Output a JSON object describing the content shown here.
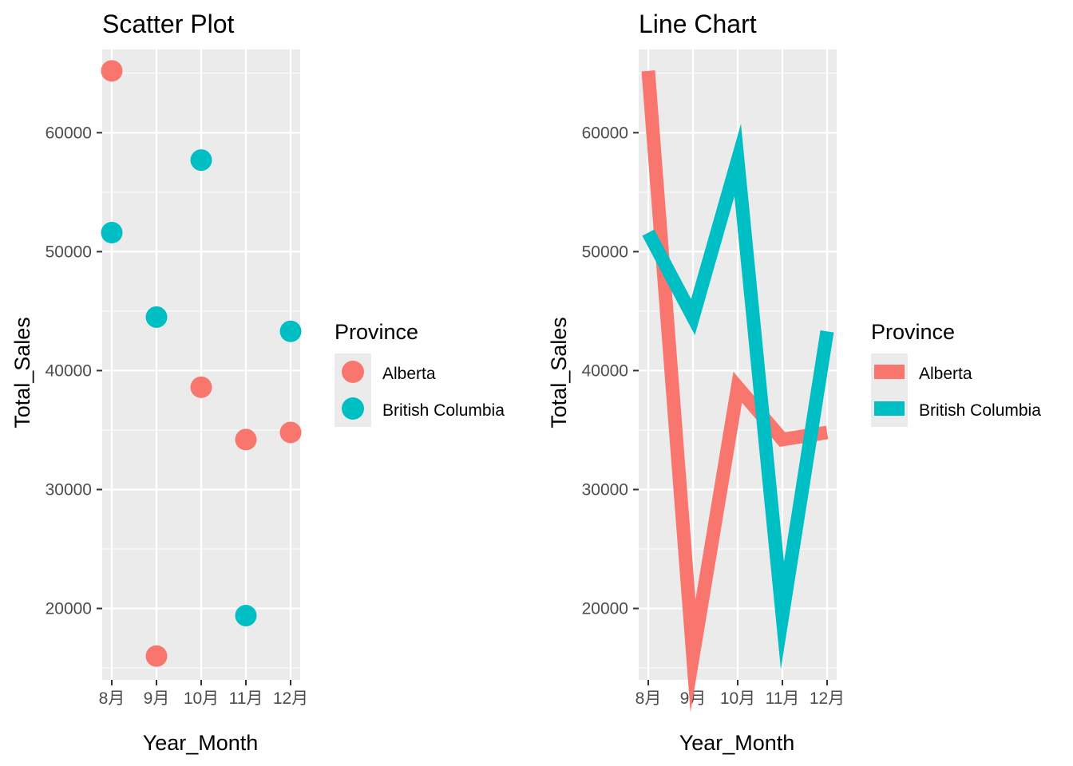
{
  "colors": {
    "Alberta": "#F8766D",
    "British Columbia": "#00BFC4",
    "panel_background": "#EBEBEB",
    "grid": "#FFFFFF",
    "tick_text": "#4D4D4D"
  },
  "chart_data": [
    {
      "type": "scatter",
      "title": "Scatter Plot",
      "xlabel": "Year_Month",
      "ylabel": "Total_Sales",
      "categories": [
        "8月",
        "9月",
        "10月",
        "11月",
        "12月"
      ],
      "ylim": [
        14000,
        67000
      ],
      "yticks": [
        20000,
        30000,
        40000,
        50000,
        60000
      ],
      "ytick_labels": [
        "20000",
        "30000",
        "40000",
        "50000",
        "60000"
      ],
      "grid": true,
      "legend_title": "Province",
      "legend_position": "right",
      "series": [
        {
          "name": "Alberta",
          "values": [
            65200,
            16000,
            38600,
            34200,
            34800
          ]
        },
        {
          "name": "British Columbia",
          "values": [
            51600,
            44500,
            57700,
            19400,
            43300
          ]
        }
      ]
    },
    {
      "type": "line",
      "title": "Line Chart",
      "xlabel": "Year_Month",
      "ylabel": "Total_Sales",
      "categories": [
        "8月",
        "9月",
        "10月",
        "11月",
        "12月"
      ],
      "ylim": [
        14000,
        67000
      ],
      "yticks": [
        20000,
        30000,
        40000,
        50000,
        60000
      ],
      "ytick_labels": [
        "20000",
        "30000",
        "40000",
        "50000",
        "60000"
      ],
      "grid": true,
      "legend_title": "Province",
      "legend_position": "right",
      "series": [
        {
          "name": "Alberta",
          "values": [
            65200,
            16000,
            38600,
            34200,
            34800
          ]
        },
        {
          "name": "British Columbia",
          "values": [
            51600,
            44500,
            57700,
            19400,
            43300
          ]
        }
      ]
    }
  ]
}
